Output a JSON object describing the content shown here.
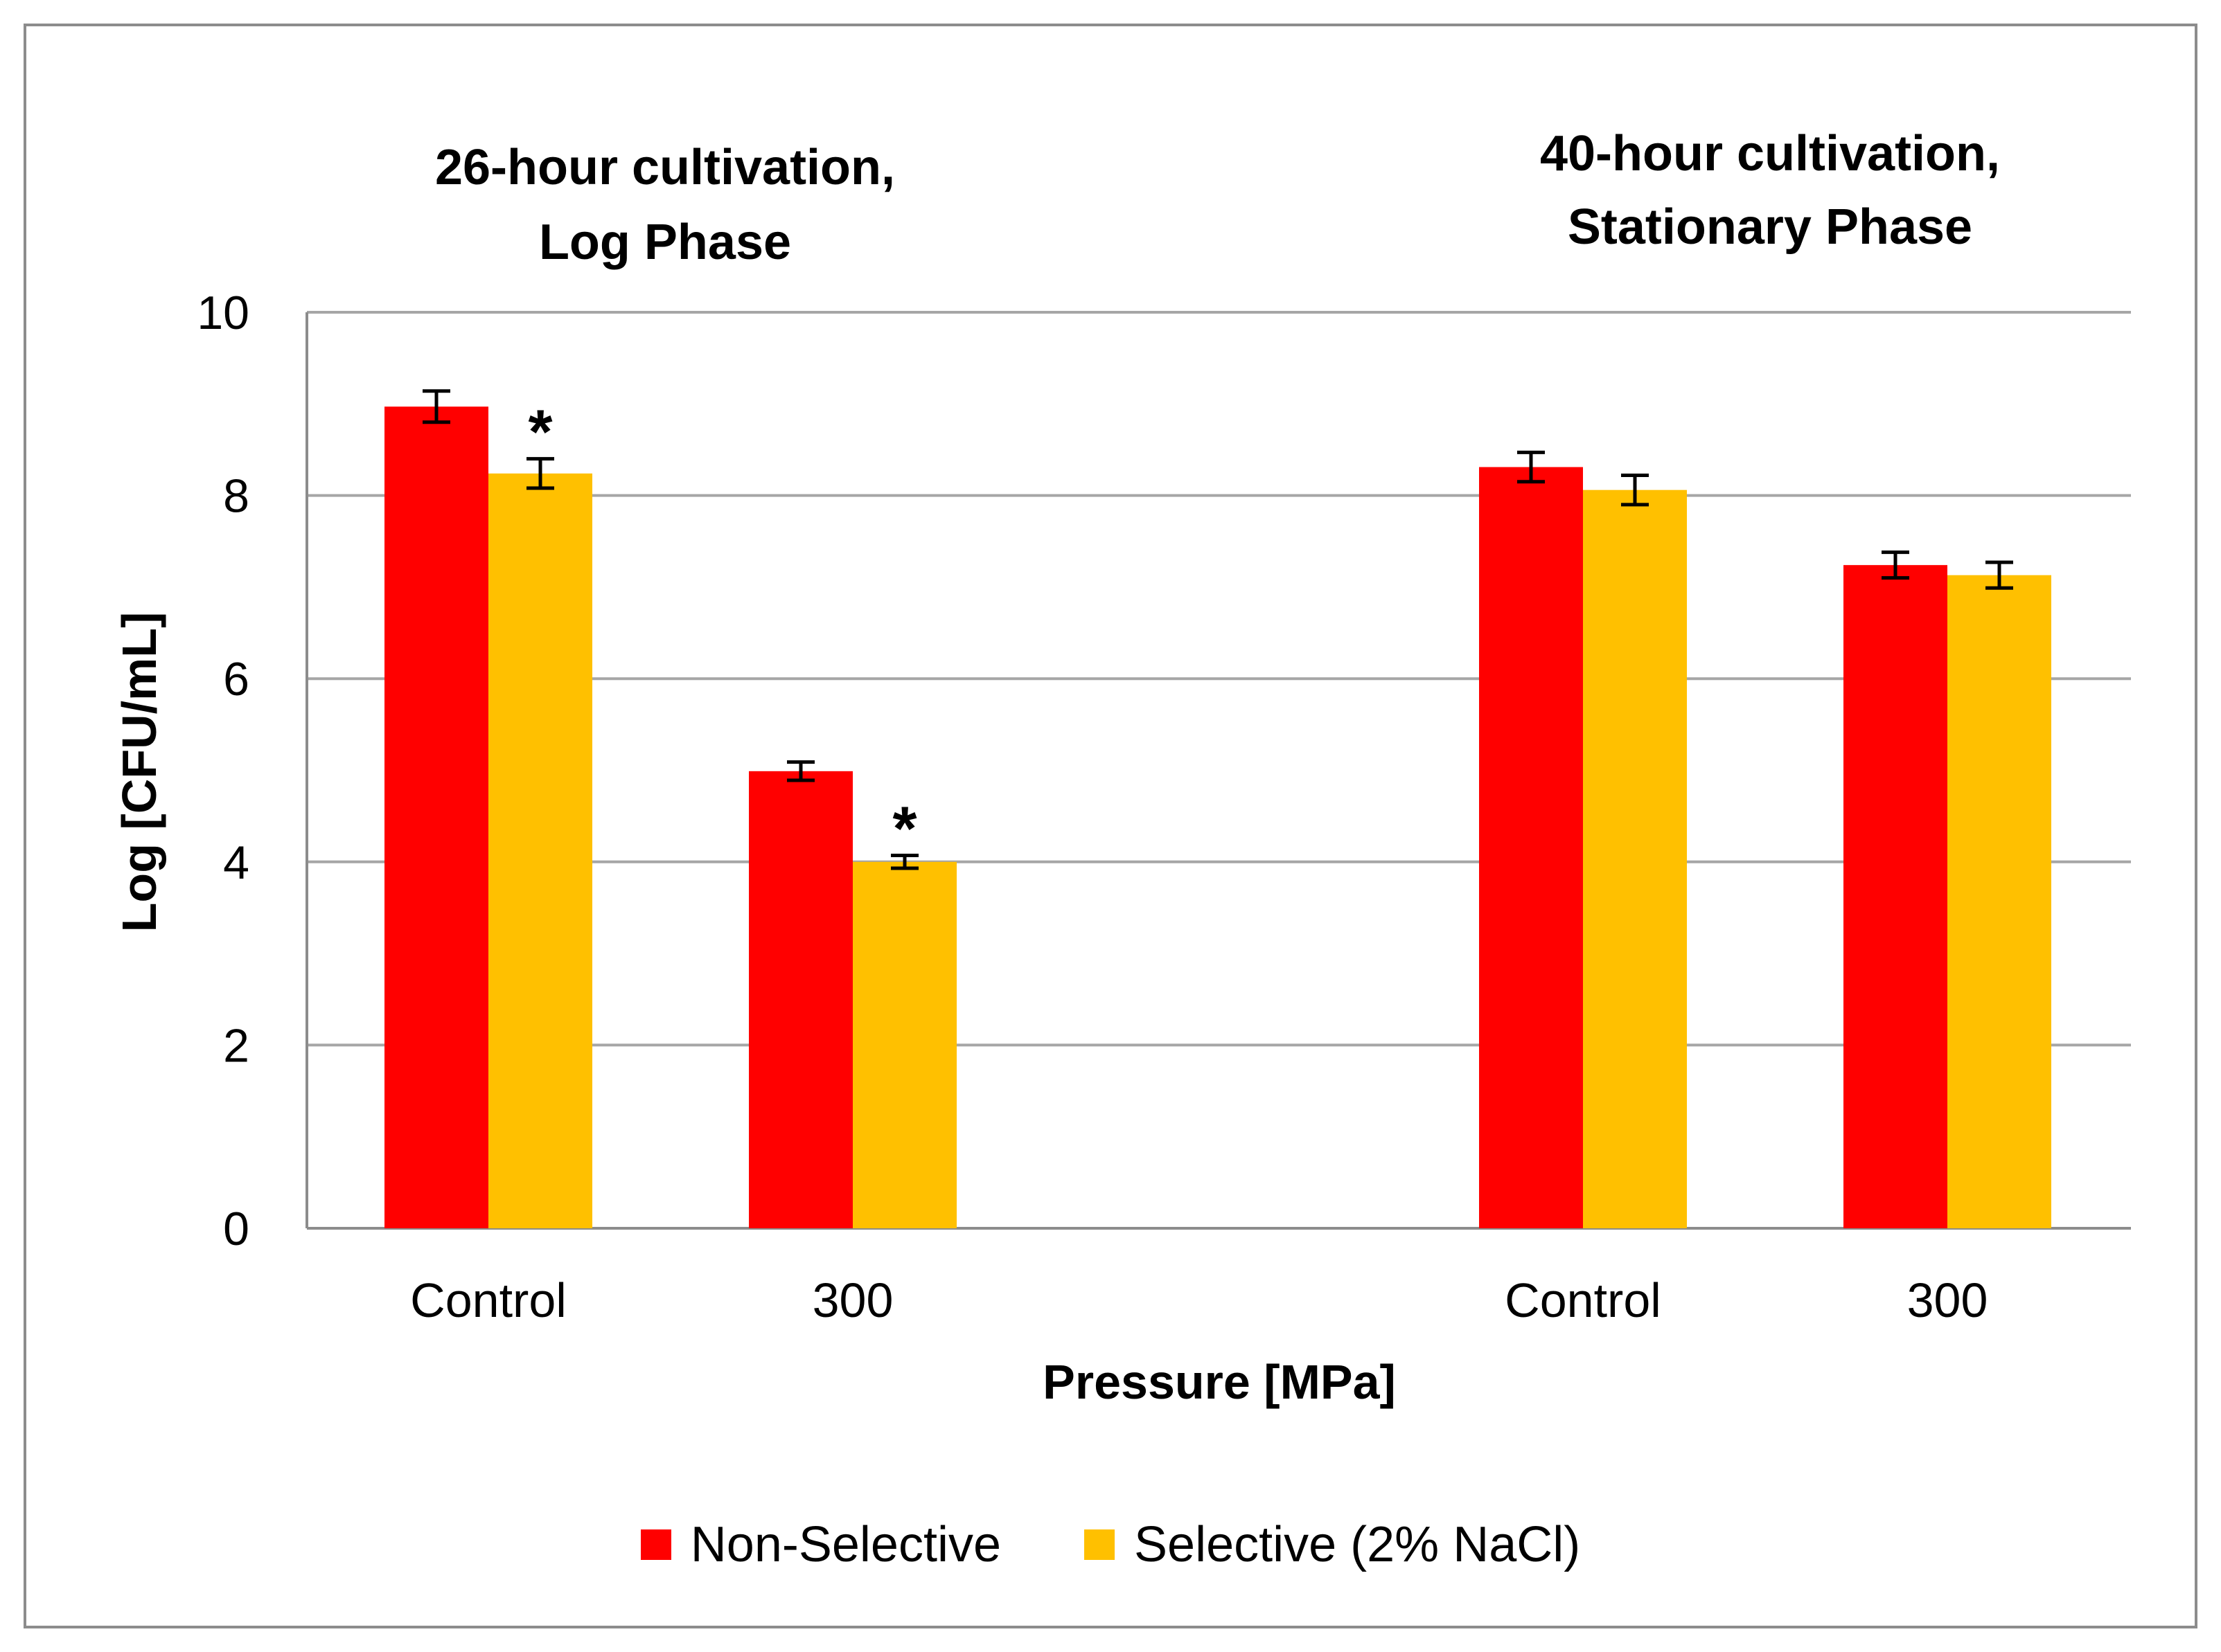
{
  "chart_data": {
    "type": "bar",
    "title": "",
    "xlabel": "Pressure [MPa]",
    "ylabel": "Log [CFU/mL]",
    "ylim": [
      0,
      10
    ],
    "yticks": [
      "0",
      "2",
      "4",
      "6",
      "8",
      "10"
    ],
    "grid": true,
    "legend_position": "bottom",
    "groups": [
      {
        "title_lines": [
          "26-hour cultivation,",
          "Log Phase"
        ],
        "categories": [
          "Control",
          "300"
        ],
        "series": [
          {
            "name": "Non-Selective",
            "values": [
              8.97,
              4.99
            ],
            "errors": [
              0.17,
              0.1
            ],
            "significance": [
              "",
              ""
            ]
          },
          {
            "name": "Selective (2% NaCl)",
            "values": [
              8.24,
              4.0
            ],
            "errors": [
              0.16,
              0.07
            ],
            "significance": [
              "*",
              "*"
            ]
          }
        ]
      },
      {
        "title_lines": [
          "40-hour cultivation,",
          "Stationary Phase"
        ],
        "categories": [
          "Control",
          "300"
        ],
        "series": [
          {
            "name": "Non-Selective",
            "values": [
              8.31,
              7.24
            ],
            "errors": [
              0.16,
              0.14
            ],
            "significance": [
              "",
              ""
            ]
          },
          {
            "name": "Selective (2% NaCl)",
            "values": [
              8.06,
              7.13
            ],
            "errors": [
              0.16,
              0.14
            ],
            "significance": [
              "",
              ""
            ]
          }
        ]
      }
    ],
    "legend": [
      {
        "name": "Non-Selective",
        "color": "#ff0000"
      },
      {
        "name": "Selective (2% NaCl)",
        "color": "#ffc000"
      }
    ],
    "colors": {
      "series0": "#ff0000",
      "series1": "#ffc000",
      "grid": "#a6a6a6",
      "axis": "#8c8c8c"
    }
  }
}
